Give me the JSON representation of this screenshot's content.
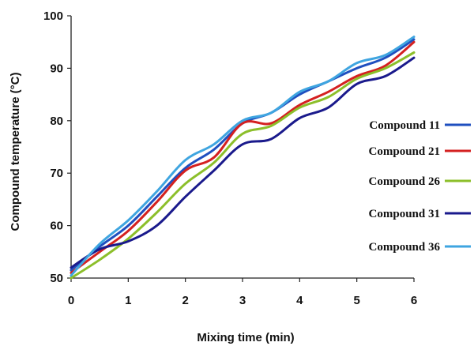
{
  "chart_data": {
    "type": "line",
    "title": "",
    "xlabel": "Mixing time (min)",
    "ylabel": "Compound temperature (°C)",
    "xlim": [
      0,
      6
    ],
    "ylim": [
      50,
      100
    ],
    "x_ticks": [
      "0",
      "1",
      "2",
      "3",
      "4",
      "5",
      "6"
    ],
    "y_ticks": [
      "50",
      "60",
      "70",
      "80",
      "90",
      "100"
    ],
    "grid": false,
    "legend_position": "right",
    "x": [
      0,
      0.5,
      1,
      1.5,
      2,
      2.5,
      3,
      3.5,
      4,
      4.5,
      5,
      5.5,
      6
    ],
    "series": [
      {
        "name": "Compound 11",
        "color": "#1f4fbf",
        "values": [
          51.5,
          56.0,
          60.0,
          65.5,
          71.0,
          74.5,
          79.5,
          81.5,
          85.0,
          87.5,
          90.0,
          92.0,
          95.5
        ]
      },
      {
        "name": "Compound 21",
        "color": "#d42020",
        "values": [
          51.0,
          55.0,
          59.0,
          64.5,
          70.5,
          73.0,
          79.5,
          79.5,
          83.0,
          85.5,
          88.5,
          90.5,
          95.0
        ]
      },
      {
        "name": "Compound 26",
        "color": "#8cbf2a",
        "values": [
          50.0,
          53.5,
          57.5,
          62.5,
          68.0,
          72.0,
          77.5,
          79.0,
          82.5,
          84.5,
          88.0,
          90.0,
          93.0
        ]
      },
      {
        "name": "Compound 31",
        "color": "#1a1a8c",
        "values": [
          52.0,
          55.5,
          57.0,
          60.0,
          65.5,
          70.5,
          75.5,
          76.5,
          80.5,
          82.5,
          87.0,
          88.5,
          92.0
        ]
      },
      {
        "name": "Compound 36",
        "color": "#3fa5e0",
        "values": [
          50.5,
          56.5,
          61.0,
          66.5,
          72.5,
          75.5,
          80.0,
          81.5,
          85.5,
          87.5,
          91.0,
          92.5,
          96.0
        ]
      }
    ]
  }
}
